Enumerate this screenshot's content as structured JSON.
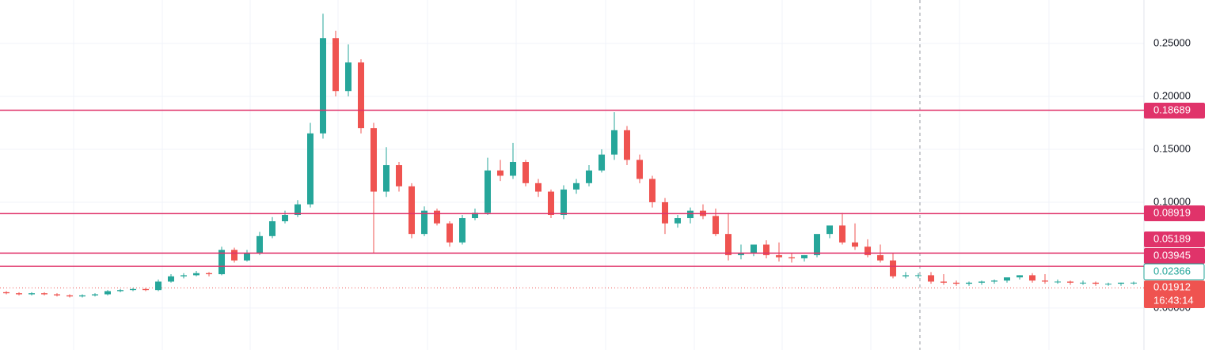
{
  "chart_data": {
    "type": "candlestick",
    "ylim": [
      -0.0396,
      0.291
    ],
    "yticks": [
      {
        "value": 0,
        "label": "0.00000"
      },
      {
        "value": 0.1,
        "label": "0.10000"
      },
      {
        "value": 0.15,
        "label": "0.15000"
      },
      {
        "value": 0.2,
        "label": "0.20000"
      },
      {
        "value": 0.25,
        "label": "0.25000"
      }
    ],
    "grid": true,
    "up_color": "#26a69a",
    "down_color": "#ef5350",
    "candles": {
      "open": [
        0.015,
        0.014,
        0.013,
        0.014,
        0.013,
        0.012,
        0.011,
        0.012,
        0.013,
        0.016,
        0.017,
        0.018,
        0.017,
        0.025,
        0.03,
        0.031,
        0.033,
        0.032,
        0.055,
        0.045,
        0.052,
        0.068,
        0.082,
        0.088,
        0.098,
        0.165,
        0.255,
        0.205,
        0.232,
        0.17,
        0.11,
        0.135,
        0.115,
        0.07,
        0.092,
        0.08,
        0.062,
        0.085,
        0.09,
        0.13,
        0.125,
        0.138,
        0.118,
        0.11,
        0.088,
        0.112,
        0.118,
        0.13,
        0.145,
        0.168,
        0.14,
        0.122,
        0.1,
        0.08,
        0.085,
        0.092,
        0.087,
        0.07,
        0.05,
        0.052,
        0.06,
        0.05,
        0.048,
        0.047,
        0.05,
        0.07,
        0.078,
        0.062,
        0.058,
        0.05,
        0.045,
        0.03,
        0.031,
        0.031,
        0.025,
        0.024,
        0.023,
        0.024,
        0.025,
        0.026,
        0.029,
        0.031,
        0.026,
        0.025,
        0.025,
        0.024,
        0.024,
        0.023,
        0.023,
        0.024
      ],
      "high": [
        0.016,
        0.015,
        0.015,
        0.015,
        0.014,
        0.013,
        0.013,
        0.014,
        0.017,
        0.018,
        0.019,
        0.019,
        0.027,
        0.032,
        0.033,
        0.035,
        0.034,
        0.058,
        0.057,
        0.055,
        0.072,
        0.086,
        0.092,
        0.102,
        0.175,
        0.278,
        0.262,
        0.249,
        0.235,
        0.175,
        0.152,
        0.138,
        0.118,
        0.096,
        0.094,
        0.082,
        0.088,
        0.094,
        0.142,
        0.14,
        0.156,
        0.14,
        0.122,
        0.112,
        0.116,
        0.122,
        0.135,
        0.15,
        0.185,
        0.172,
        0.145,
        0.125,
        0.104,
        0.088,
        0.095,
        0.098,
        0.094,
        0.09,
        0.06,
        0.058,
        0.064,
        0.062,
        0.052,
        0.05,
        0.053,
        0.072,
        0.09,
        0.08,
        0.065,
        0.06,
        0.052,
        0.034,
        0.033,
        0.034,
        0.032,
        0.026,
        0.025,
        0.026,
        0.027,
        0.028,
        0.031,
        0.033,
        0.032,
        0.027,
        0.026,
        0.026,
        0.025,
        0.024,
        0.024,
        0.025
      ],
      "low": [
        0.013,
        0.012,
        0.012,
        0.012,
        0.011,
        0.01,
        0.01,
        0.011,
        0.012,
        0.015,
        0.016,
        0.016,
        0.016,
        0.024,
        0.028,
        0.03,
        0.03,
        0.031,
        0.043,
        0.044,
        0.05,
        0.066,
        0.08,
        0.086,
        0.095,
        0.16,
        0.2,
        0.2,
        0.165,
        0.052,
        0.105,
        0.11,
        0.066,
        0.068,
        0.078,
        0.058,
        0.06,
        0.083,
        0.088,
        0.12,
        0.122,
        0.115,
        0.105,
        0.085,
        0.084,
        0.108,
        0.115,
        0.128,
        0.14,
        0.135,
        0.118,
        0.095,
        0.07,
        0.076,
        0.08,
        0.084,
        0.068,
        0.045,
        0.046,
        0.049,
        0.047,
        0.044,
        0.043,
        0.044,
        0.048,
        0.066,
        0.06,
        0.055,
        0.048,
        0.043,
        0.028,
        0.028,
        0.028,
        0.023,
        0.022,
        0.021,
        0.021,
        0.022,
        0.023,
        0.024,
        0.027,
        0.024,
        0.023,
        0.023,
        0.022,
        0.022,
        0.021,
        0.021,
        0.021,
        0.022
      ],
      "close": [
        0.014,
        0.013,
        0.014,
        0.013,
        0.012,
        0.011,
        0.012,
        0.013,
        0.016,
        0.017,
        0.018,
        0.017,
        0.025,
        0.03,
        0.031,
        0.033,
        0.032,
        0.055,
        0.045,
        0.052,
        0.068,
        0.082,
        0.088,
        0.098,
        0.165,
        0.255,
        0.205,
        0.232,
        0.17,
        0.11,
        0.135,
        0.115,
        0.07,
        0.092,
        0.08,
        0.062,
        0.085,
        0.09,
        0.13,
        0.125,
        0.138,
        0.118,
        0.11,
        0.088,
        0.112,
        0.118,
        0.13,
        0.145,
        0.168,
        0.14,
        0.122,
        0.1,
        0.08,
        0.085,
        0.092,
        0.087,
        0.07,
        0.05,
        0.052,
        0.06,
        0.05,
        0.048,
        0.047,
        0.05,
        0.07,
        0.078,
        0.062,
        0.058,
        0.05,
        0.045,
        0.03,
        0.031,
        0.031,
        0.025,
        0.024,
        0.023,
        0.024,
        0.025,
        0.026,
        0.029,
        0.031,
        0.026,
        0.025,
        0.025,
        0.024,
        0.024,
        0.023,
        0.023,
        0.024,
        0.024
      ]
    },
    "levels": [
      0.18689,
      0.08919,
      0.05189,
      0.03945
    ],
    "level_color": "#e0336a",
    "current_price": 0.02366,
    "last_price": 0.01912,
    "countdown": "16:43:14"
  }
}
